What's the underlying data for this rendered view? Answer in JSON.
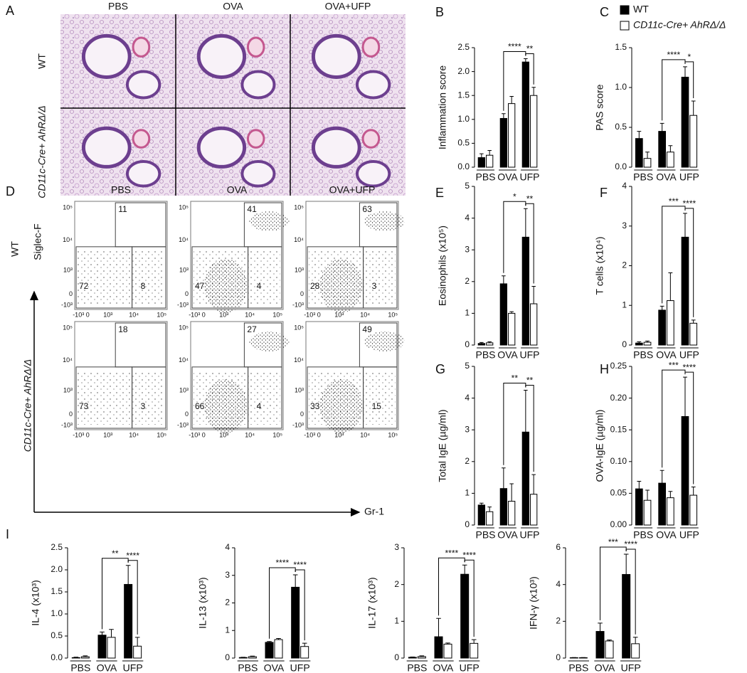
{
  "histology": {
    "panel": "A",
    "columns": [
      "PBS",
      "OVA",
      "OVA+UFP"
    ],
    "rows": [
      "WT",
      "CD11c-Cre+ AhRΔ/Δ"
    ]
  },
  "flow": {
    "panel": "D",
    "columns": [
      "PBS",
      "OVA",
      "OVA+UFP"
    ],
    "rows": [
      "WT",
      "CD11c-Cre+ AhRΔ/Δ"
    ],
    "y_axis": "Siglec-F",
    "x_axis": "Gr-1",
    "ticks": [
      "-10³",
      "0",
      "10³",
      "10⁴",
      "10⁵"
    ],
    "gates": [
      [
        [
          11,
          72,
          8
        ],
        [
          41,
          47,
          4
        ],
        [
          63,
          28,
          3
        ]
      ],
      [
        [
          18,
          73,
          3
        ],
        [
          27,
          66,
          4
        ],
        [
          49,
          33,
          15
        ]
      ]
    ]
  },
  "chart_data": [
    {
      "type": "bar",
      "panel": "B",
      "y_label": "Inflammation score",
      "categories": [
        "PBS",
        "OVA",
        "UFP"
      ],
      "ylim": [
        0,
        2.5
      ],
      "yticks": [
        {
          "value": 0,
          "label": "0.0"
        },
        0.5,
        {
          "value": 1,
          "label": "1.0"
        },
        1.5,
        {
          "value": 2,
          "label": "2.0"
        },
        2.5
      ],
      "series": [
        {
          "color": "#000000",
          "values": [
            0.2,
            1.02,
            2.2
          ],
          "errors": [
            0.08,
            0.1,
            0.07
          ]
        },
        {
          "color": "#ffffff",
          "values": [
            0.25,
            1.33,
            1.5
          ],
          "errors": [
            0.1,
            0.15,
            0.17
          ]
        }
      ],
      "annotations": [
        "****",
        "**"
      ]
    },
    {
      "type": "bar",
      "panel": "C",
      "y_label": "PAS score",
      "categories": [
        "PBS",
        "OVA",
        "UFP"
      ],
      "legend": "top",
      "ylim": [
        0,
        1.5
      ],
      "yticks": [
        {
          "value": 0,
          "label": "0.0"
        },
        0.5,
        {
          "value": 1,
          "label": "1.0"
        },
        1.5
      ],
      "series": [
        {
          "name": "WT",
          "color": "#000000",
          "values": [
            0.36,
            0.45,
            1.13
          ],
          "errors": [
            0.09,
            0.1,
            0.13
          ]
        },
        {
          "name": "CD11c-Cre+ AhRΔ/Δ",
          "color": "#ffffff",
          "values": [
            0.11,
            0.19,
            0.65
          ],
          "errors": [
            0.08,
            0.08,
            0.18
          ]
        }
      ],
      "annotations": [
        "****",
        "*"
      ]
    },
    {
      "type": "bar",
      "panel": "E",
      "y_label": "Eosinophils (x10⁵)",
      "categories": [
        "PBS",
        "OVA",
        "UFP"
      ],
      "ylim": [
        0,
        5
      ],
      "yticks": [
        0,
        1,
        2,
        3,
        4,
        5
      ],
      "series": [
        {
          "color": "#000000",
          "values": [
            0.05,
            1.93,
            3.4
          ],
          "errors": [
            0.03,
            0.25,
            0.9
          ]
        },
        {
          "color": "#ffffff",
          "values": [
            0.07,
            1.0,
            1.3
          ],
          "errors": [
            0.03,
            0.05,
            0.55
          ]
        }
      ],
      "annotations": [
        "*",
        "**"
      ]
    },
    {
      "type": "bar",
      "panel": "F",
      "y_label": "T cells (x10⁴)",
      "categories": [
        "PBS",
        "OVA",
        "UFP"
      ],
      "ylim": [
        0,
        4
      ],
      "yticks": [
        0,
        1,
        2,
        3,
        4
      ],
      "series": [
        {
          "color": "#000000",
          "values": [
            0.05,
            0.88,
            2.72
          ],
          "errors": [
            0.03,
            0.1,
            0.6
          ]
        },
        {
          "color": "#ffffff",
          "values": [
            0.07,
            1.12,
            0.55
          ],
          "errors": [
            0.03,
            0.7,
            0.08
          ]
        }
      ],
      "annotations": [
        "***",
        "****"
      ]
    },
    {
      "type": "bar",
      "panel": "G",
      "y_label": "Total IgE (µg/ml)",
      "categories": [
        "PBS",
        "OVA",
        "UFP"
      ],
      "ylim": [
        0,
        5
      ],
      "yticks": [
        0,
        1,
        2,
        3,
        4,
        5
      ],
      "series": [
        {
          "color": "#000000",
          "values": [
            0.63,
            1.15,
            2.93
          ],
          "errors": [
            0.06,
            0.65,
            1.32
          ]
        },
        {
          "color": "#ffffff",
          "values": [
            0.42,
            0.75,
            0.97
          ],
          "errors": [
            0.15,
            0.55,
            0.62
          ]
        }
      ],
      "annotations": [
        "**",
        "**"
      ]
    },
    {
      "type": "bar",
      "panel": "H",
      "y_label": "OVA-IgE (µg/ml)",
      "categories": [
        "PBS",
        "OVA",
        "UFP"
      ],
      "ylim": [
        0,
        0.25
      ],
      "yticks": [
        {
          "value": 0,
          "label": "0.00"
        },
        0.05,
        {
          "value": 0.1,
          "label": "0.10"
        },
        0.15,
        {
          "value": 0.2,
          "label": "0.20"
        },
        0.25
      ],
      "series": [
        {
          "color": "#000000",
          "values": [
            0.057,
            0.066,
            0.171
          ],
          "errors": [
            0.012,
            0.02,
            0.062
          ]
        },
        {
          "color": "#ffffff",
          "values": [
            0.039,
            0.043,
            0.047
          ],
          "errors": [
            0.016,
            0.01,
            0.013
          ]
        }
      ],
      "annotations": [
        "***",
        "****"
      ]
    },
    {
      "type": "bar",
      "panel": "I",
      "y_label": "IL-4 (x10³)",
      "categories": [
        "PBS",
        "OVA",
        "UFP"
      ],
      "ylim": [
        0,
        2.5
      ],
      "yticks": [
        {
          "value": 0,
          "label": "0.0"
        },
        0.5,
        {
          "value": 1,
          "label": "1.0"
        },
        1.5,
        {
          "value": 2,
          "label": "2.0"
        },
        2.5
      ],
      "series": [
        {
          "color": "#000000",
          "values": [
            0.01,
            0.52,
            1.67
          ],
          "errors": [
            0.01,
            0.07,
            0.43
          ]
        },
        {
          "color": "#ffffff",
          "values": [
            0.03,
            0.47,
            0.27
          ],
          "errors": [
            0.02,
            0.18,
            0.2
          ]
        }
      ],
      "annotations": [
        "**",
        "****"
      ]
    },
    {
      "type": "bar",
      "y_label": "IL-13 (x10³)",
      "categories": [
        "PBS",
        "OVA",
        "UFP"
      ],
      "ylim": [
        0,
        4
      ],
      "yticks": [
        0,
        1,
        2,
        3,
        4
      ],
      "series": [
        {
          "color": "#000000",
          "values": [
            0.02,
            0.57,
            2.57
          ],
          "errors": [
            0.01,
            0.03,
            0.45
          ]
        },
        {
          "color": "#ffffff",
          "values": [
            0.05,
            0.67,
            0.42
          ],
          "errors": [
            0.02,
            0.04,
            0.12
          ]
        }
      ],
      "annotations": [
        "****",
        "****"
      ]
    },
    {
      "type": "bar",
      "y_label": "IL-17 (x10³)",
      "categories": [
        "PBS",
        "OVA",
        "UFP"
      ],
      "ylim": [
        0,
        3
      ],
      "yticks": [
        0,
        1,
        2,
        3
      ],
      "series": [
        {
          "color": "#000000",
          "values": [
            0.02,
            0.58,
            2.28
          ],
          "errors": [
            0.01,
            0.5,
            0.25
          ]
        },
        {
          "color": "#ffffff",
          "values": [
            0.04,
            0.38,
            0.4
          ],
          "errors": [
            0.02,
            0.03,
            0.1
          ]
        }
      ],
      "annotations": [
        "****",
        "****"
      ]
    },
    {
      "type": "bar",
      "y_label": "IFN-γ (x10³)",
      "categories": [
        "PBS",
        "OVA",
        "UFP"
      ],
      "ylim": [
        0,
        6
      ],
      "yticks": [
        0,
        2,
        4,
        6
      ],
      "series": [
        {
          "color": "#000000",
          "values": [
            0.02,
            1.45,
            4.55
          ],
          "errors": [
            0.01,
            0.45,
            1.1
          ]
        },
        {
          "color": "#ffffff",
          "values": [
            0.02,
            0.93,
            0.78
          ],
          "errors": [
            0.01,
            0.05,
            0.35
          ]
        }
      ],
      "annotations": [
        "***",
        "****"
      ]
    }
  ]
}
